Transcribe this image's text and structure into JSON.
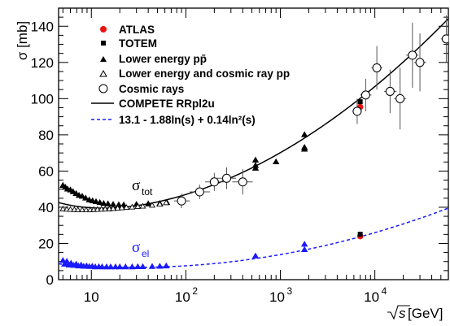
{
  "chart_data": {
    "type": "scatter",
    "x_scale": "log",
    "xlim": [
      4.5,
      60000
    ],
    "ylim": [
      0,
      150
    ],
    "xlabel_prefix": "√",
    "xlabel_var": "s",
    "xlabel_unit": " [GeV]",
    "ylabel": "σ [mb]",
    "x_ticks": [
      {
        "value": 10,
        "base": "10",
        "exp": ""
      },
      {
        "value": 100,
        "base": "10",
        "exp": "2"
      },
      {
        "value": 1000,
        "base": "10",
        "exp": "3"
      },
      {
        "value": 10000,
        "base": "10",
        "exp": "4"
      }
    ],
    "y_ticks": [
      0,
      20,
      40,
      60,
      80,
      100,
      120,
      140
    ],
    "grid": false,
    "legend_position": "top-left",
    "legend": [
      {
        "key": "atlas",
        "label": "ATLAS"
      },
      {
        "key": "totem",
        "label": "TOTEM"
      },
      {
        "key": "lower_ppbar",
        "label": "Lower energy pp̄"
      },
      {
        "key": "lower_pp",
        "label": "Lower energy and cosmic ray pp"
      },
      {
        "key": "cosmic",
        "label": "Cosmic rays"
      },
      {
        "key": "compete",
        "label": "COMPETE RRpl2u"
      },
      {
        "key": "fit",
        "label": "13.1 - 1.88ln(s) + 0.14ln²(s)"
      }
    ],
    "curve_labels": {
      "tot": {
        "symbol": "σ",
        "sub": "tot",
        "color": "#000000"
      },
      "el": {
        "symbol": "σ",
        "sub": "el",
        "color": "#1a1aff"
      }
    },
    "colors": {
      "atlas": "#ee1111",
      "totem": "#000000",
      "black": "#000000",
      "elastic": "#1a1aff"
    },
    "series": [
      {
        "key": "atlas",
        "marker": "filled-circle",
        "color": "#ee1111",
        "points": [
          {
            "x": 7000,
            "y": 95.4
          },
          {
            "x": 7000,
            "y": 24.0
          }
        ]
      },
      {
        "key": "totem",
        "marker": "filled-square",
        "color": "#000000",
        "points": [
          {
            "x": 7000,
            "y": 98.3
          },
          {
            "x": 7000,
            "y": 25.1
          }
        ]
      },
      {
        "key": "lower_ppbar",
        "marker": "filled-triangle",
        "color": "#000000",
        "points": [
          {
            "x": 5.0,
            "y": 52
          },
          {
            "x": 5.3,
            "y": 51
          },
          {
            "x": 5.6,
            "y": 50
          },
          {
            "x": 6.0,
            "y": 49.5
          },
          {
            "x": 6.4,
            "y": 48.5
          },
          {
            "x": 6.9,
            "y": 47.5
          },
          {
            "x": 7.4,
            "y": 46.5
          },
          {
            "x": 8.0,
            "y": 46
          },
          {
            "x": 8.7,
            "y": 45
          },
          {
            "x": 9.5,
            "y": 44
          },
          {
            "x": 10.3,
            "y": 43.5
          },
          {
            "x": 11.2,
            "y": 43
          },
          {
            "x": 12.3,
            "y": 42.5
          },
          {
            "x": 13.5,
            "y": 42
          },
          {
            "x": 15,
            "y": 41.8
          },
          {
            "x": 17,
            "y": 41.5
          },
          {
            "x": 19.5,
            "y": 41.3
          },
          {
            "x": 22,
            "y": 41.2
          },
          {
            "x": 30,
            "y": 41.5
          },
          {
            "x": 40,
            "y": 41.8
          },
          {
            "x": 53,
            "y": 42
          },
          {
            "x": 63,
            "y": 42.5
          },
          {
            "x": 546,
            "y": 61.5
          },
          {
            "x": 546,
            "y": 63
          },
          {
            "x": 546,
            "y": 66
          },
          {
            "x": 900,
            "y": 65
          },
          {
            "x": 1800,
            "y": 72
          },
          {
            "x": 1800,
            "y": 73
          },
          {
            "x": 1800,
            "y": 80
          }
        ]
      },
      {
        "key": "lower_pp",
        "marker": "open-triangle",
        "color": "#000000",
        "points": [
          {
            "x": 5.0,
            "y": 39
          },
          {
            "x": 5.5,
            "y": 38.8
          },
          {
            "x": 6.0,
            "y": 38.7
          },
          {
            "x": 6.6,
            "y": 38.6
          },
          {
            "x": 7.2,
            "y": 38.5
          },
          {
            "x": 8.0,
            "y": 38.5
          },
          {
            "x": 8.8,
            "y": 38.5
          },
          {
            "x": 9.7,
            "y": 38.5
          },
          {
            "x": 10.6,
            "y": 38.6
          },
          {
            "x": 11.6,
            "y": 38.7
          },
          {
            "x": 12.8,
            "y": 38.8
          },
          {
            "x": 14,
            "y": 38.9
          },
          {
            "x": 15.5,
            "y": 39
          },
          {
            "x": 17,
            "y": 39.2
          },
          {
            "x": 19,
            "y": 39.4
          },
          {
            "x": 21,
            "y": 39.6
          },
          {
            "x": 23.5,
            "y": 39.8
          },
          {
            "x": 27,
            "y": 40
          },
          {
            "x": 31,
            "y": 40.3
          },
          {
            "x": 35,
            "y": 40.5
          },
          {
            "x": 44,
            "y": 41
          },
          {
            "x": 53,
            "y": 41.6
          },
          {
            "x": 62,
            "y": 42.4
          }
        ]
      },
      {
        "key": "cosmic",
        "marker": "open-circle",
        "color": "#000000",
        "points": [
          {
            "x": 90,
            "y": 43.5,
            "yerr": 4,
            "xlo": 75,
            "xhi": 110
          },
          {
            "x": 140,
            "y": 48.5,
            "yerr": 4,
            "xlo": 110,
            "xhi": 180
          },
          {
            "x": 200,
            "y": 54,
            "yerr": 5,
            "xlo": 160,
            "xhi": 250
          },
          {
            "x": 270,
            "y": 56,
            "yerr": 6,
            "xlo": 210,
            "xhi": 340
          },
          {
            "x": 400,
            "y": 54,
            "yerr": 7,
            "xlo": 310,
            "xhi": 510
          },
          {
            "x": 6500,
            "y": 93,
            "yerr": 7,
            "xlo": 5800,
            "xhi": 7300
          },
          {
            "x": 8000,
            "y": 102,
            "yerr": 9,
            "xlo": 7000,
            "xhi": 9200
          },
          {
            "x": 10500,
            "y": 117,
            "yerr": 12,
            "xlo": 9200,
            "xhi": 12000
          },
          {
            "x": 14500,
            "y": 104,
            "yerr": 12,
            "xlo": 12500,
            "xhi": 17000
          },
          {
            "x": 18500,
            "y": 100,
            "yerr": 17,
            "xlo": 16000,
            "xhi": 21500
          },
          {
            "x": 25000,
            "y": 124,
            "yerr": 18,
            "xlo": 21500,
            "xhi": 29000
          },
          {
            "x": 30000,
            "y": 120,
            "yerr": 16,
            "xlo": 26000,
            "xhi": 35000
          },
          {
            "x": 57000,
            "y": 133,
            "yerr": 13,
            "xlo": 50000,
            "xhi": 60000
          }
        ]
      },
      {
        "key": "elastic_lower",
        "marker": "filled-triangle",
        "color": "#1a1aff",
        "points": [
          {
            "x": 5.0,
            "y": 10.5
          },
          {
            "x": 5.2,
            "y": 8.5
          },
          {
            "x": 5.5,
            "y": 10
          },
          {
            "x": 5.8,
            "y": 8
          },
          {
            "x": 6.1,
            "y": 9
          },
          {
            "x": 6.5,
            "y": 7.8
          },
          {
            "x": 6.9,
            "y": 8.5
          },
          {
            "x": 7.3,
            "y": 7.5
          },
          {
            "x": 7.8,
            "y": 8
          },
          {
            "x": 8.3,
            "y": 7.3
          },
          {
            "x": 8.9,
            "y": 7.5
          },
          {
            "x": 9.5,
            "y": 7.2
          },
          {
            "x": 10.2,
            "y": 7.3
          },
          {
            "x": 11,
            "y": 7
          },
          {
            "x": 12,
            "y": 7.1
          },
          {
            "x": 13,
            "y": 7
          },
          {
            "x": 14.5,
            "y": 7
          },
          {
            "x": 16,
            "y": 7
          },
          {
            "x": 18,
            "y": 7
          },
          {
            "x": 20,
            "y": 7
          },
          {
            "x": 23,
            "y": 7
          },
          {
            "x": 27,
            "y": 7
          },
          {
            "x": 31,
            "y": 7.1
          },
          {
            "x": 35,
            "y": 7.1
          },
          {
            "x": 44,
            "y": 7.2
          },
          {
            "x": 53,
            "y": 7.3
          },
          {
            "x": 62,
            "y": 7.5
          },
          {
            "x": 546,
            "y": 13
          },
          {
            "x": 1800,
            "y": 16.5
          },
          {
            "x": 1800,
            "y": 19.5
          }
        ]
      }
    ],
    "fit_total": {
      "description": "COMPETE RRpl2u"
    },
    "fit_elastic": {
      "a": 13.1,
      "b": -1.88,
      "c": 0.14
    }
  }
}
